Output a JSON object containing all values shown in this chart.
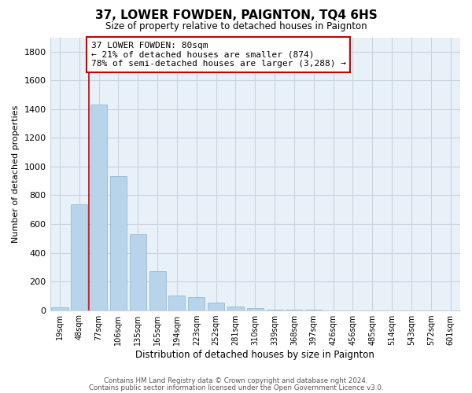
{
  "title": "37, LOWER FOWDEN, PAIGNTON, TQ4 6HS",
  "subtitle": "Size of property relative to detached houses in Paignton",
  "xlabel": "Distribution of detached houses by size in Paignton",
  "ylabel": "Number of detached properties",
  "bar_color": "#b8d4ea",
  "bar_edge_color": "#8ab4d4",
  "highlight_color": "#cc0000",
  "background_color": "#ffffff",
  "plot_bg_color": "#e8f0f8",
  "grid_color": "#c8d4e0",
  "categories": [
    "19sqm",
    "48sqm",
    "77sqm",
    "106sqm",
    "135sqm",
    "165sqm",
    "194sqm",
    "223sqm",
    "252sqm",
    "281sqm",
    "310sqm",
    "339sqm",
    "368sqm",
    "397sqm",
    "426sqm",
    "456sqm",
    "485sqm",
    "514sqm",
    "543sqm",
    "572sqm",
    "601sqm"
  ],
  "values": [
    20,
    735,
    1430,
    935,
    530,
    270,
    100,
    90,
    50,
    25,
    12,
    5,
    2,
    1,
    0,
    0,
    0,
    0,
    0,
    0,
    0
  ],
  "highlight_bar_index": 2,
  "ylim": [
    0,
    1900
  ],
  "yticks": [
    0,
    200,
    400,
    600,
    800,
    1000,
    1200,
    1400,
    1600,
    1800
  ],
  "annotation_title": "37 LOWER FOWDEN: 80sqm",
  "annotation_line1": "← 21% of detached houses are smaller (874)",
  "annotation_line2": "78% of semi-detached houses are larger (3,288) →",
  "footer_line1": "Contains HM Land Registry data © Crown copyright and database right 2024.",
  "footer_line2": "Contains public sector information licensed under the Open Government Licence v3.0."
}
